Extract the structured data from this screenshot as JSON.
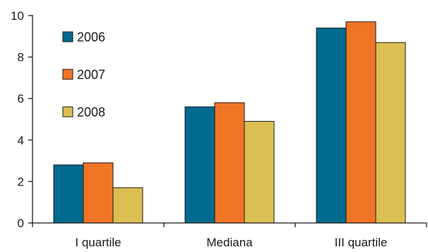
{
  "chart_data": {
    "type": "bar",
    "title": "",
    "xlabel": "",
    "ylabel": "",
    "categories": [
      "I quartile",
      "Mediana",
      "III quartile"
    ],
    "series": [
      {
        "name": "2006",
        "values": [
          2.8,
          5.6,
          9.4
        ],
        "color": "#006a8f"
      },
      {
        "name": "2007",
        "values": [
          2.9,
          5.8,
          9.7
        ],
        "color": "#f07426"
      },
      {
        "name": "2008",
        "values": [
          1.7,
          4.9,
          8.7
        ],
        "color": "#dcbf52"
      }
    ],
    "ylim": [
      0,
      10
    ],
    "yticks": [
      "0",
      "2",
      "4",
      "6",
      "8",
      "10"
    ],
    "grid": false,
    "legend_position": "top-left"
  }
}
